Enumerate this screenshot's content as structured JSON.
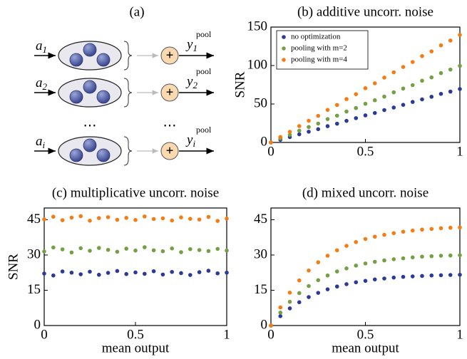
{
  "diagram": {
    "panel_label": "(a)",
    "inputs": [
      {
        "base": "a",
        "sub": "1"
      },
      {
        "base": "a",
        "sub": "2"
      },
      {
        "base": "a",
        "sub": "i"
      }
    ],
    "outputs": [
      {
        "base": "y",
        "sub": "1",
        "sup": "pool"
      },
      {
        "base": "y",
        "sub": "2",
        "sup": "pool"
      },
      {
        "base": "y",
        "sub": "i",
        "sup": "pool"
      }
    ],
    "ellipsis": "⋯",
    "plus": "+"
  },
  "chart_data": [
    {
      "type": "scatter",
      "title": "(b) additive uncorr. noise",
      "ylabel": "SNR",
      "x": [
        0,
        0.05,
        0.1,
        0.15,
        0.2,
        0.25,
        0.3,
        0.35,
        0.4,
        0.45,
        0.5,
        0.55,
        0.6,
        0.65,
        0.7,
        0.75,
        0.8,
        0.85,
        0.9,
        0.95,
        1
      ],
      "series": [
        {
          "name": "no optimization",
          "color": "#2b3a96",
          "values": [
            0,
            3.5,
            7,
            10.6,
            14,
            17.3,
            21.2,
            24.4,
            28.1,
            31.6,
            35.2,
            38.3,
            42.1,
            45.4,
            48.9,
            52.7,
            56,
            59.4,
            63.2,
            66.1,
            69.5
          ]
        },
        {
          "name": "pooling with m=2",
          "color": "#72a043",
          "values": [
            0,
            5.2,
            9.8,
            15.3,
            20.1,
            24.6,
            30.4,
            34.8,
            40.2,
            44.7,
            50.3,
            54.9,
            59.6,
            65.2,
            70.1,
            74.5,
            80.3,
            84.6,
            90.2,
            94.8,
            99.5
          ]
        },
        {
          "name": "pooling with m=4",
          "color": "#f57c12",
          "values": [
            0,
            7.1,
            13.8,
            21.3,
            28.2,
            34.6,
            42.3,
            48.7,
            56.4,
            62.8,
            70.5,
            76.9,
            84.3,
            91.2,
            98.1,
            104.6,
            112.3,
            118.4,
            126.2,
            132.5,
            139.8
          ]
        }
      ],
      "xlim": [
        0,
        1
      ],
      "ylim": [
        0,
        150
      ],
      "xticks": [
        0,
        0.5,
        1
      ],
      "yticks": [
        0,
        50,
        100,
        150
      ],
      "legend": "upper left"
    },
    {
      "type": "scatter",
      "title": "(c) multiplicative uncorr. noise",
      "ylabel": "SNR",
      "xlabel": "mean output",
      "x": [
        0,
        0.05,
        0.1,
        0.15,
        0.2,
        0.25,
        0.3,
        0.35,
        0.4,
        0.45,
        0.5,
        0.55,
        0.6,
        0.65,
        0.7,
        0.75,
        0.8,
        0.85,
        0.9,
        0.95,
        1
      ],
      "series": [
        {
          "color": "#2b3a96",
          "values": [
            22.1,
            21.3,
            23.0,
            22.5,
            21.8,
            22.9,
            21.6,
            22.4,
            23.2,
            21.9,
            22.6,
            22.0,
            23.1,
            21.7,
            22.8,
            22.3,
            21.5,
            22.7,
            23.3,
            22.2,
            22.5
          ]
        },
        {
          "color": "#72a043",
          "values": [
            31.5,
            33.2,
            32.4,
            31.1,
            32.9,
            31.8,
            33.0,
            32.2,
            31.4,
            32.7,
            31.9,
            33.3,
            32.0,
            31.6,
            32.8,
            31.2,
            32.5,
            32.1,
            31.7,
            32.6,
            31.9
          ]
        },
        {
          "color": "#f57c12",
          "values": [
            45.2,
            46.3,
            44.8,
            45.9,
            46.5,
            44.6,
            45.7,
            46.1,
            45.0,
            45.8,
            44.9,
            46.4,
            45.3,
            45.6,
            44.7,
            46.0,
            45.4,
            45.1,
            46.2,
            44.5,
            45.5
          ]
        }
      ],
      "xlim": [
        0,
        1
      ],
      "ylim": [
        0,
        50
      ],
      "xticks": [
        0,
        0.5,
        1
      ],
      "yticks": [
        0,
        15,
        30,
        45
      ]
    },
    {
      "type": "scatter",
      "title": "(d) mixed uncorr. noise",
      "xlabel": "mean output",
      "x": [
        0,
        0.05,
        0.1,
        0.15,
        0.2,
        0.25,
        0.3,
        0.35,
        0.4,
        0.45,
        0.5,
        0.55,
        0.6,
        0.65,
        0.7,
        0.75,
        0.8,
        0.85,
        0.9,
        0.95,
        1
      ],
      "series": [
        {
          "color": "#2b3a96",
          "values": [
            0,
            4.0,
            7.3,
            9.9,
            12.1,
            13.9,
            15.4,
            16.6,
            17.6,
            18.4,
            19.0,
            19.6,
            20.0,
            20.4,
            20.7,
            20.9,
            21.1,
            21.3,
            21.4,
            21.5,
            21.6
          ]
        },
        {
          "color": "#72a043",
          "values": [
            0,
            5.5,
            10.1,
            13.8,
            16.8,
            19.3,
            21.3,
            23.0,
            24.3,
            25.5,
            26.4,
            27.1,
            27.7,
            28.2,
            28.6,
            29.0,
            29.3,
            29.5,
            29.7,
            29.8,
            29.9
          ]
        },
        {
          "color": "#f57c12",
          "values": [
            0,
            7.7,
            14.0,
            19.2,
            23.4,
            26.9,
            29.7,
            32.0,
            33.9,
            35.5,
            36.8,
            37.8,
            38.6,
            39.3,
            39.9,
            40.4,
            40.8,
            41.1,
            41.4,
            41.6,
            41.7
          ]
        }
      ],
      "xlim": [
        0,
        1
      ],
      "ylim": [
        0,
        50
      ],
      "xticks": [
        0,
        0.5,
        1
      ],
      "yticks": [
        0,
        15,
        30,
        45
      ]
    }
  ]
}
